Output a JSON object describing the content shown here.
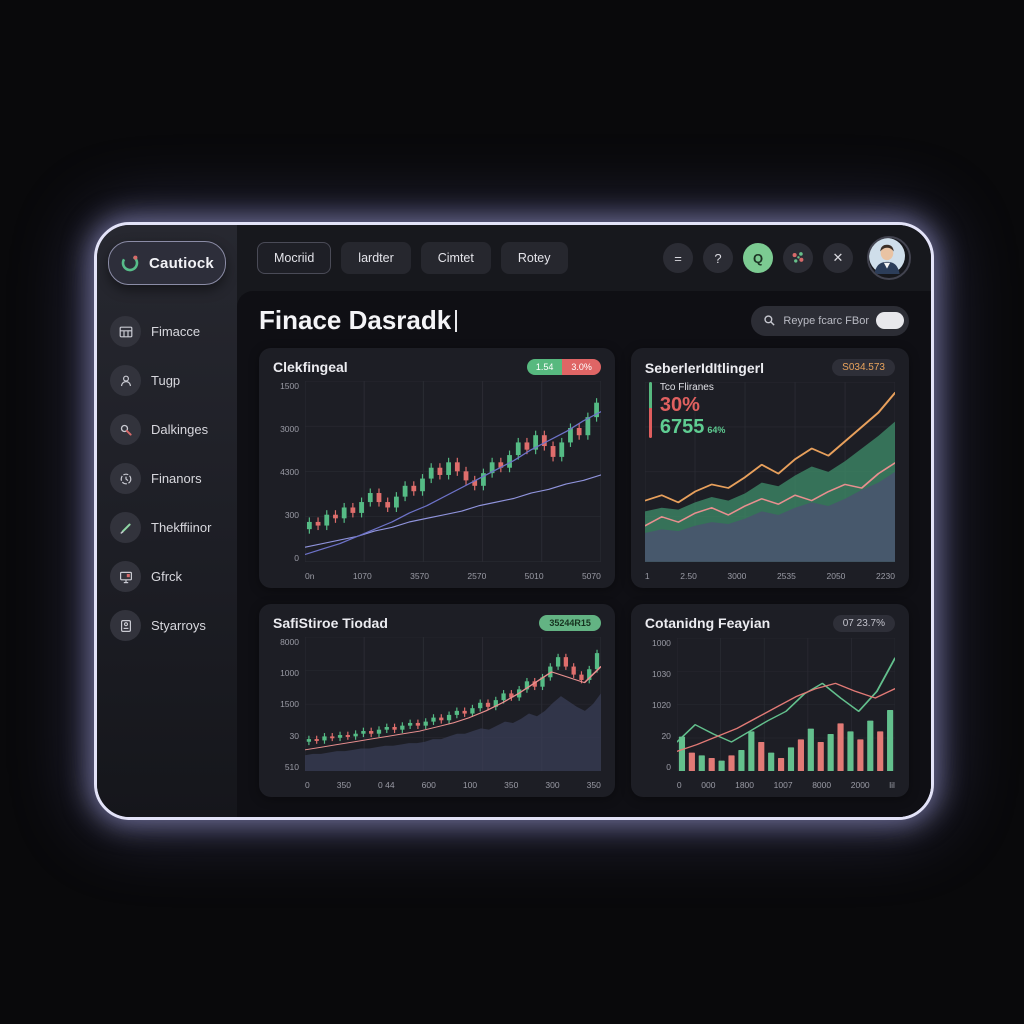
{
  "app": {
    "logo": "Cautiock"
  },
  "topbar": {
    "tabs": [
      {
        "label": "Mocriid"
      },
      {
        "label": "lardter"
      },
      {
        "label": "Cimtet"
      },
      {
        "label": "Rotey"
      }
    ],
    "buttons": {
      "menu": "=",
      "help": "?",
      "currency": "Q",
      "close": "✕"
    }
  },
  "sidebar": {
    "items": [
      {
        "label": "Fimacce"
      },
      {
        "label": "Tugp"
      },
      {
        "label": "Dalkinges"
      },
      {
        "label": "Finanors"
      },
      {
        "label": "Thekffiinor"
      },
      {
        "label": "Gfrck"
      },
      {
        "label": "Styarroys"
      }
    ]
  },
  "header": {
    "title": "Finace Dasradk"
  },
  "search": {
    "label": "Reype fcarc FBor"
  },
  "cards": [
    {
      "title": "Clekfingeal",
      "badge_green": "1.54",
      "badge_red": "3.0%"
    },
    {
      "title": "SeberlerIdItlingerl",
      "badge": "S034.573",
      "stats": {
        "label": "Tco Fliranes",
        "pct": "30%",
        "value": "6755",
        "sub": "64%"
      }
    },
    {
      "title": "SafiStiroe Tiodad",
      "badge": "35244R15"
    },
    {
      "title": "Cotanidng Feayian",
      "badge": "07 23.7%"
    }
  ],
  "colors": {
    "green": "#57bb85",
    "red": "#df6e6c",
    "orange": "#e8a35c",
    "slate": "#4a5470",
    "glow": "#dcdcf8"
  },
  "chart_data": [
    {
      "type": "candlestick",
      "title": "Clekfingeal",
      "y_ticks": [
        "1500",
        "3000",
        "4300",
        "300",
        "0"
      ],
      "x_ticks": [
        "0n",
        "1070",
        "3570",
        "2570",
        "5010",
        "5070"
      ],
      "candles": [
        [
          18,
          22
        ],
        [
          22,
          20
        ],
        [
          20,
          26
        ],
        [
          26,
          24
        ],
        [
          24,
          30
        ],
        [
          30,
          27
        ],
        [
          27,
          33
        ],
        [
          33,
          38
        ],
        [
          38,
          33
        ],
        [
          33,
          30
        ],
        [
          30,
          36
        ],
        [
          36,
          42
        ],
        [
          42,
          39
        ],
        [
          39,
          46
        ],
        [
          46,
          52
        ],
        [
          52,
          48
        ],
        [
          48,
          55
        ],
        [
          55,
          50
        ],
        [
          50,
          45
        ],
        [
          45,
          42
        ],
        [
          42,
          49
        ],
        [
          49,
          55
        ],
        [
          55,
          52
        ],
        [
          52,
          59
        ],
        [
          59,
          66
        ],
        [
          66,
          62
        ],
        [
          62,
          70
        ],
        [
          70,
          64
        ],
        [
          64,
          58
        ],
        [
          58,
          66
        ],
        [
          66,
          74
        ],
        [
          74,
          70
        ],
        [
          70,
          80
        ],
        [
          80,
          88
        ]
      ],
      "lines": [
        {
          "color": "#9094dd",
          "width": 0.6,
          "values": [
            8,
            10,
            12,
            14,
            17,
            19,
            22,
            24,
            26,
            28,
            31,
            33,
            35,
            38,
            40,
            43,
            45,
            48
          ]
        },
        {
          "color": "#6d72c8",
          "width": 0.6,
          "values": [
            4,
            7,
            10,
            14,
            18,
            22,
            27,
            31,
            36,
            41,
            46,
            51,
            56,
            62,
            67,
            72,
            78,
            83
          ]
        }
      ]
    },
    {
      "type": "area",
      "title": "SeberlerIdItlingerl",
      "x_ticks": [
        "1",
        "2.50",
        "3000",
        "2535",
        "2050",
        "2230"
      ],
      "areas": [
        {
          "color": "#3f8f6b",
          "opacity": 0.75,
          "values": [
            28,
            30,
            29,
            33,
            36,
            34,
            38,
            44,
            42,
            48,
            53,
            50,
            56,
            63,
            70,
            78
          ]
        },
        {
          "color": "#4a5470",
          "opacity": 0.85,
          "values": [
            16,
            18,
            17,
            20,
            22,
            21,
            24,
            28,
            26,
            30,
            33,
            31,
            35,
            40,
            44,
            50
          ]
        }
      ],
      "lines": [
        {
          "color": "#e8a05c",
          "width": 0.9,
          "values": [
            34,
            37,
            33,
            39,
            43,
            41,
            47,
            54,
            49,
            57,
            63,
            59,
            67,
            75,
            83,
            94
          ]
        },
        {
          "color": "#e98f8f",
          "width": 0.8,
          "values": [
            20,
            25,
            22,
            27,
            30,
            26,
            31,
            35,
            32,
            37,
            34,
            39,
            43,
            41,
            49,
            55
          ]
        }
      ],
      "stats": {
        "label": "Tco Fliranes",
        "pct": "30%",
        "value": "6755",
        "sub": "64%"
      }
    },
    {
      "type": "candlestick-area",
      "title": "SafiStiroe Tiodad",
      "y_ticks": [
        "8000",
        "1000",
        "1500",
        "30",
        "510"
      ],
      "x_ticks": [
        "0",
        "350",
        "0 44",
        "600",
        "100",
        "350",
        "300",
        "350"
      ],
      "areas": [
        {
          "color": "#3a3f58",
          "opacity": 0.7,
          "values": [
            12,
            13,
            13,
            14,
            15,
            15,
            16,
            17,
            17,
            18,
            19,
            19,
            20,
            21,
            21,
            22,
            24,
            24,
            26,
            28,
            28,
            30,
            32,
            31,
            34,
            37,
            36,
            39,
            43,
            41,
            45,
            51,
            56,
            52,
            48,
            45,
            50,
            58
          ]
        }
      ],
      "candles": [
        [
          22,
          24
        ],
        [
          24,
          23
        ],
        [
          23,
          26
        ],
        [
          26,
          25
        ],
        [
          25,
          27
        ],
        [
          27,
          26
        ],
        [
          26,
          28
        ],
        [
          28,
          30
        ],
        [
          30,
          28
        ],
        [
          28,
          31
        ],
        [
          31,
          33
        ],
        [
          33,
          31
        ],
        [
          31,
          34
        ],
        [
          34,
          36
        ],
        [
          36,
          34
        ],
        [
          34,
          37
        ],
        [
          37,
          40
        ],
        [
          40,
          38
        ],
        [
          38,
          42
        ],
        [
          42,
          45
        ],
        [
          45,
          43
        ],
        [
          43,
          47
        ],
        [
          47,
          51
        ],
        [
          51,
          48
        ],
        [
          48,
          53
        ],
        [
          53,
          58
        ],
        [
          58,
          55
        ],
        [
          55,
          61
        ],
        [
          61,
          67
        ],
        [
          67,
          63
        ],
        [
          63,
          70
        ],
        [
          70,
          78
        ],
        [
          78,
          85
        ],
        [
          85,
          78
        ],
        [
          78,
          72
        ],
        [
          72,
          68
        ],
        [
          68,
          76
        ],
        [
          76,
          88
        ]
      ],
      "lines": [
        {
          "color": "#e98f8f",
          "width": 0.7,
          "values": [
            16,
            18,
            20,
            22,
            24,
            26,
            28,
            30,
            33,
            36,
            40,
            45,
            51,
            58,
            66,
            74,
            70,
            66,
            78
          ]
        }
      ]
    },
    {
      "type": "bar-line",
      "title": "Cotanidng Feayian",
      "y_ticks": [
        "1000",
        "1030",
        "1020",
        "20",
        "0"
      ],
      "x_ticks": [
        "0",
        "000",
        "1800",
        "1007",
        "8000",
        "2000",
        "lil"
      ],
      "bars": {
        "heights": [
          26,
          14,
          12,
          10,
          8,
          12,
          16,
          30,
          22,
          14,
          10,
          18,
          24,
          32,
          22,
          28,
          36,
          30,
          24,
          38,
          30,
          46
        ],
        "colors": [
          "green",
          "red",
          "green",
          "red",
          "green",
          "red",
          "green",
          "green",
          "red",
          "green",
          "red",
          "green",
          "red",
          "green",
          "red",
          "green",
          "red",
          "green",
          "red",
          "green",
          "red",
          "green"
        ]
      },
      "lines": [
        {
          "color": "#63c08d",
          "width": 0.9,
          "values": [
            22,
            35,
            28,
            22,
            30,
            38,
            45,
            58,
            66,
            55,
            45,
            60,
            85
          ]
        },
        {
          "color": "#e27a76",
          "width": 0.9,
          "values": [
            15,
            20,
            26,
            32,
            40,
            48,
            56,
            62,
            66,
            60,
            55,
            62
          ]
        }
      ]
    }
  ]
}
